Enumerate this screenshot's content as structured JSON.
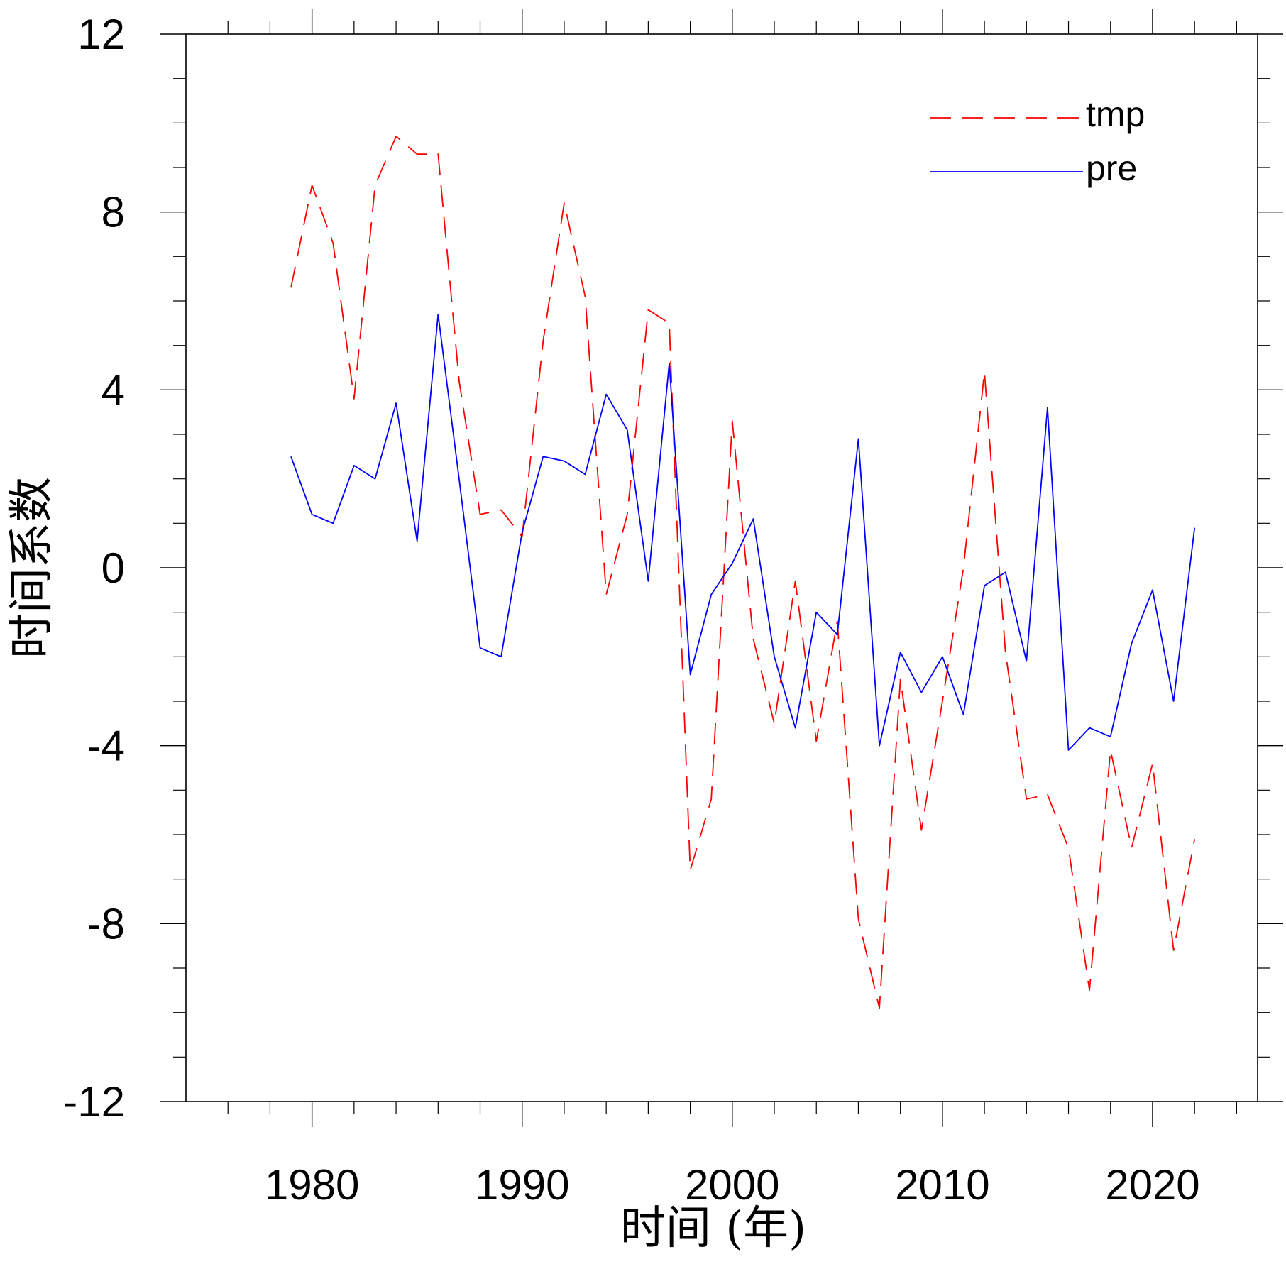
{
  "chart_data": {
    "type": "line",
    "title": "",
    "xlabel": "时间 (年)",
    "ylabel": "时间系数",
    "xlim": [
      1974,
      2025
    ],
    "ylim": [
      -12,
      12
    ],
    "xticks": [
      1980,
      1990,
      2000,
      2010,
      2020
    ],
    "xtick_labels": [
      "1980",
      "1990",
      "2000",
      "2010",
      "2020"
    ],
    "yticks": [
      12,
      8,
      4,
      0,
      -4,
      -8,
      -12
    ],
    "ytick_labels": [
      "12",
      "8",
      "4",
      "0",
      "-4",
      "-8",
      "-12"
    ],
    "x_minor_step": 2,
    "y_minor_step": 1,
    "grid": false,
    "legend_position": "top-right",
    "x": [
      1979,
      1980,
      1981,
      1982,
      1983,
      1984,
      1985,
      1986,
      1987,
      1988,
      1989,
      1990,
      1991,
      1992,
      1993,
      1994,
      1995,
      1996,
      1997,
      1998,
      1999,
      2000,
      2001,
      2002,
      2003,
      2004,
      2005,
      2006,
      2007,
      2008,
      2009,
      2010,
      2011,
      2012,
      2013,
      2014,
      2015,
      2016,
      2017,
      2018,
      2019,
      2020,
      2021,
      2022
    ],
    "series": [
      {
        "name": "tmp",
        "color": "#ff0000",
        "dash": "dashed",
        "values": [
          6.3,
          8.6,
          7.3,
          3.8,
          8.6,
          9.7,
          9.3,
          9.3,
          4.2,
          1.2,
          1.3,
          0.7,
          5.1,
          8.2,
          6.1,
          -0.6,
          1.2,
          5.8,
          5.5,
          -6.8,
          -5.2,
          3.3,
          -1.6,
          -3.5,
          -0.3,
          -3.9,
          -1.2,
          -7.9,
          -9.9,
          -2.5,
          -5.9,
          -3.0,
          0.0,
          4.4,
          -1.9,
          -5.2,
          -5.1,
          -6.3,
          -9.5,
          -4.1,
          -6.3,
          -4.4,
          -8.6,
          -6.1
        ]
      },
      {
        "name": "pre",
        "color": "#0000ff",
        "dash": "solid",
        "values": [
          2.5,
          1.2,
          1.0,
          2.3,
          2.0,
          3.7,
          0.6,
          5.7,
          2.0,
          -1.8,
          -2.0,
          0.8,
          2.5,
          2.4,
          2.1,
          3.9,
          3.1,
          -0.3,
          4.6,
          -2.4,
          -0.6,
          0.1,
          1.1,
          -2.0,
          -3.6,
          -1.0,
          -1.5,
          2.9,
          -4.0,
          -1.9,
          -2.8,
          -2.0,
          -3.3,
          -0.4,
          -0.1,
          -2.1,
          3.6,
          -4.1,
          -3.6,
          -3.8,
          -1.7,
          -0.5,
          -3.0,
          0.9
        ]
      }
    ]
  }
}
